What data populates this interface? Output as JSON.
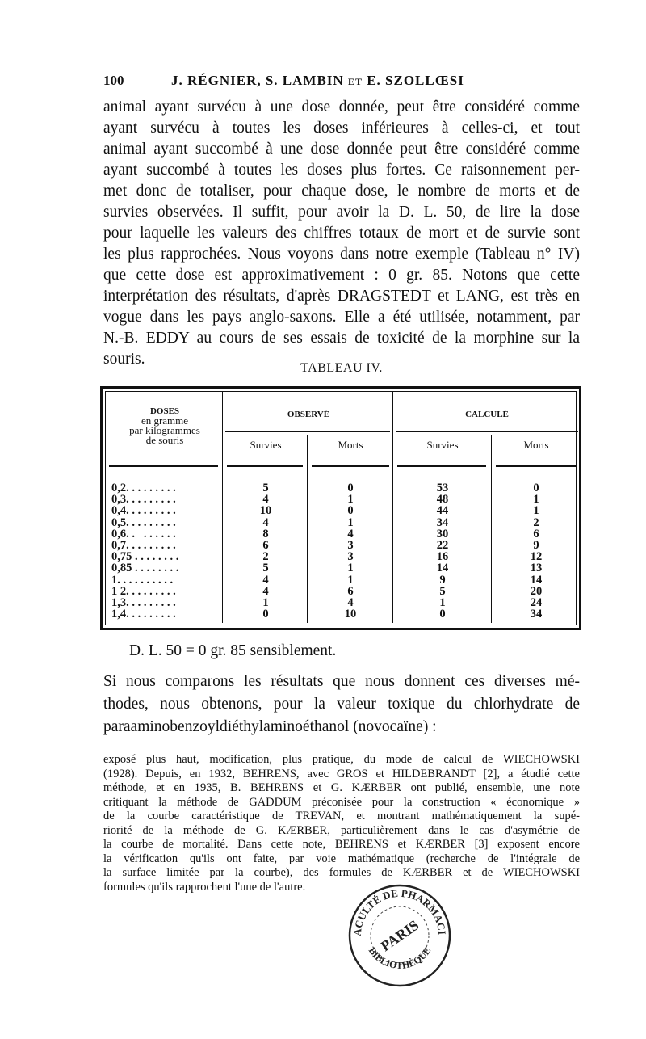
{
  "header": {
    "page_number": "100",
    "authors": "J. RÉGNIER, S. LAMBIN et E. SZOLLŒSI"
  },
  "paragraph1": [
    "animal ayant survécu à une dose donnée, peut être considéré comme",
    "ayant survécu à toutes les doses inférieures à celles-ci, et tout",
    "animal ayant succombé à une dose donnée peut être considéré comme",
    "ayant succombé à toutes les doses plus fortes. Ce raisonnement per-",
    "met donc de totaliser, pour chaque dose, le nombre de morts et de",
    "survies observées. Il suffit, pour avoir la D. L. 50, de lire la dose",
    "pour laquelle les valeurs des chiffres totaux de mort et de survie sont",
    "les plus rapprochées. Nous voyons dans notre exemple (Tableau n° IV)",
    "que cette dose est approximativement : 0 gr. 85. Notons que cette",
    "interprétation des résultats, d'après DRAGSTEDT et LANG, est très en",
    "vogue dans les pays anglo-saxons. Elle a été utilisée, notamment, par",
    "N.-B. EDDY au cours de ses essais de toxicité de la morphine sur la",
    "souris."
  ],
  "table": {
    "caption": "TABLEAU IV.",
    "headers": {
      "doses": [
        "DOSES",
        "en gramme",
        "par kilogrammes",
        "de souris"
      ],
      "observe": "OBSERVÉ",
      "calcule": "CALCULÉ",
      "survies": "Survies",
      "morts": "Morts"
    },
    "rows": [
      {
        "dose": "0,2. . . . . . . . .",
        "obs_survies": "5",
        "obs_morts": "0",
        "calc_survies": "53",
        "calc_morts": "0"
      },
      {
        "dose": "0,3. . . . . . . . .",
        "obs_survies": "4",
        "obs_morts": "1",
        "calc_survies": "48",
        "calc_morts": "1"
      },
      {
        "dose": "0,4. . . . . . . . .",
        "obs_survies": "10",
        "obs_morts": "0",
        "calc_survies": "44",
        "calc_morts": "1"
      },
      {
        "dose": "0,5. . . . . . . . .",
        "obs_survies": "4",
        "obs_morts": "1",
        "calc_survies": "34",
        "calc_morts": "2"
      },
      {
        "dose": "0,6. .   . . . . . .",
        "obs_survies": "8",
        "obs_morts": "4",
        "calc_survies": "30",
        "calc_morts": "6"
      },
      {
        "dose": "0,7. . . . . . . . .",
        "obs_survies": "6",
        "obs_morts": "3",
        "calc_survies": "22",
        "calc_morts": "9"
      },
      {
        "dose": "0,75 . . . . . . . .",
        "obs_survies": "2",
        "obs_morts": "3",
        "calc_survies": "16",
        "calc_morts": "12"
      },
      {
        "dose": "0,85 . . . . . . . .",
        "obs_survies": "5",
        "obs_morts": "1",
        "calc_survies": "14",
        "calc_morts": "13"
      },
      {
        "dose": "1. . . . . . . . . .",
        "obs_survies": "4",
        "obs_morts": "1",
        "calc_survies": "9",
        "calc_morts": "14"
      },
      {
        "dose": "1 2. . . . . . . . .",
        "obs_survies": "4",
        "obs_morts": "6",
        "calc_survies": "5",
        "calc_morts": "20"
      },
      {
        "dose": "1,3. . . . . . . . .",
        "obs_survies": "1",
        "obs_morts": "4",
        "calc_survies": "1",
        "calc_morts": "24"
      },
      {
        "dose": "1,4. . . . . . . . .",
        "obs_survies": "0",
        "obs_morts": "10",
        "calc_survies": "0",
        "calc_morts": "34"
      }
    ]
  },
  "dl_result": "D. L. 50 = 0 gr. 85 sensiblement.",
  "paragraph2": [
    "Si nous comparons les résultats que nous donnent ces diverses mé-",
    "thodes, nous obtenons, pour la valeur toxique du chlorhydrate de",
    "paraaminobenzoyldiéthylaminoéthanol (novocaïne) :"
  ],
  "footnote": [
    "exposé plus haut, modification, plus pratique, du mode de calcul de WIECHOWSKI",
    "(1928). Depuis, en 1932, BEHRENS, avec GROS et HILDEBRANDT [2], a étudié cette",
    "méthode, et en 1935, B. BEHRENS et G. KÆRBER ont publié, ensemble, une note",
    "critiquant la méthode de GADDUM préconisée pour la construction « économique »",
    "de la courbe caractéristique de TREVAN, et montrant mathématiquement la supé-",
    "riorité de la méthode de G. KÆRBER, particulièrement dans le cas d'asymétrie de",
    "la courbe de mortalité. Dans cette note, BEHRENS et KÆRBER [3] exposent encore",
    "la vérification qu'ils ont faite, par voie mathématique (recherche de l'intégrale de",
    "la surface limitée par la courbe), des formules de KÆRBER et de WIECHOWSKI",
    "formules qu'ils rapprochent l'une de l'autre."
  ],
  "stamp": {
    "top_text": "FACULTÉ DE PHARMACIE",
    "center_text": "PARIS",
    "bottom_text": "BIBLIOTHÈQUE",
    "color": "#222222"
  }
}
